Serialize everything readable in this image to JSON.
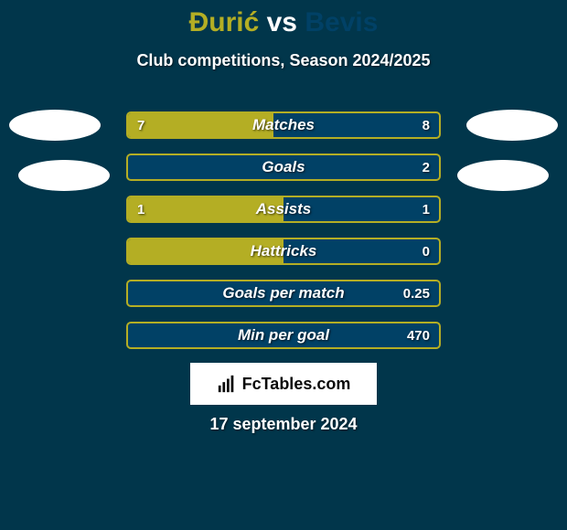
{
  "title": {
    "player_a": "Đurić",
    "vs": "vs",
    "player_b": "Bevis",
    "color_a": "#b4ae24",
    "color_vs": "#ffffff",
    "color_b": "#014166"
  },
  "subtitle": "Club competitions, Season 2024/2025",
  "colors": {
    "background": "#01364b",
    "player_a": "#b4ae24",
    "player_b": "#014166",
    "text": "#ffffff",
    "avatar_bg": "#ffffff"
  },
  "bars": [
    {
      "label": "Matches",
      "value_a": "7",
      "value_b": "8",
      "ratio_a": 0.467,
      "show_a": true,
      "show_b": true
    },
    {
      "label": "Goals",
      "value_a": "",
      "value_b": "2",
      "ratio_a": 0.0,
      "show_a": false,
      "show_b": true
    },
    {
      "label": "Assists",
      "value_a": "1",
      "value_b": "1",
      "ratio_a": 0.5,
      "show_a": true,
      "show_b": true
    },
    {
      "label": "Hattricks",
      "value_a": "",
      "value_b": "0",
      "ratio_a": 0.5,
      "show_a": false,
      "show_b": true
    },
    {
      "label": "Goals per match",
      "value_a": "",
      "value_b": "0.25",
      "ratio_a": 0.0,
      "show_a": false,
      "show_b": true
    },
    {
      "label": "Min per goal",
      "value_a": "",
      "value_b": "470",
      "ratio_a": 0.0,
      "show_a": false,
      "show_b": true
    }
  ],
  "logo": {
    "text": "FcTables.com"
  },
  "date": "17 september 2024"
}
